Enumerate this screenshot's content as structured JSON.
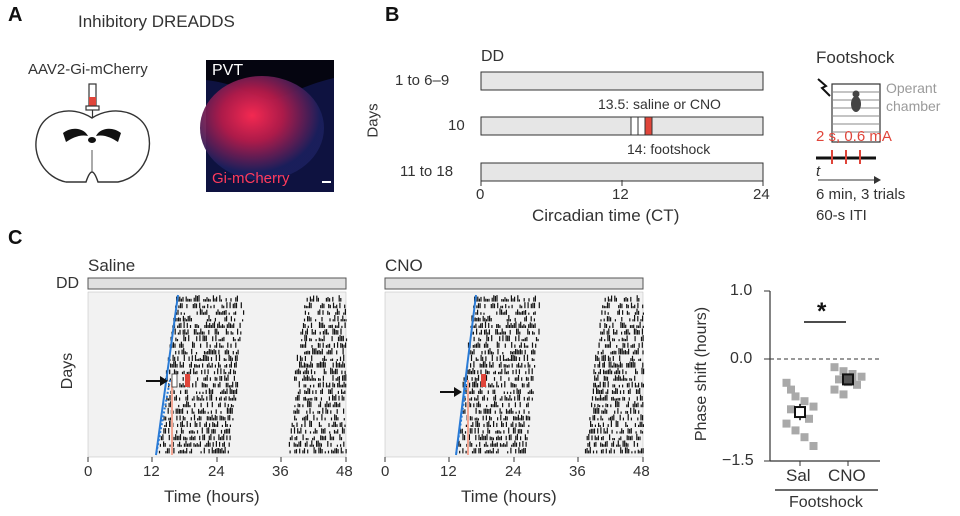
{
  "panel_a": {
    "letter": "A",
    "title": "Inhibitory DREADDS",
    "virus_label": "AAV2-Gi-mCherry",
    "region_label": "PVT",
    "expression_label": "Gi-mCherry"
  },
  "panel_b": {
    "letter": "B",
    "lighting": "DD",
    "ylabel": "Days",
    "rows": [
      "1 to 6–9",
      "10",
      "11 to 18"
    ],
    "annotation_injection": "13.5: saline or CNO",
    "annotation_footshock": "14: footshock",
    "x_ticks": [
      "0",
      "12",
      "24"
    ],
    "xlabel": "Circadian time (CT)",
    "footshock_title": "Footshock",
    "chamber_label_1": "Operant",
    "chamber_label_2": "chamber",
    "shock_params": "2 s, 0.6 mA",
    "time_symbol": "t",
    "protocol_1": "6 min, 3 trials",
    "protocol_2": "60-s ITI",
    "colors": {
      "bar_fill": "#e6e6e6",
      "shock": "#e0453a"
    }
  },
  "panel_c": {
    "letter": "C",
    "lighting": "DD",
    "ylabel": "Days",
    "actograms": [
      {
        "title": "Saline",
        "x_ticks": [
          "0",
          "12",
          "24",
          "36",
          "48"
        ],
        "xlabel": "Time (hours)"
      },
      {
        "title": "CNO",
        "x_ticks": [
          "0",
          "12",
          "24",
          "36",
          "48"
        ],
        "xlabel": "Time (hours)"
      }
    ]
  },
  "chart_data": {
    "type": "scatter",
    "ylabel": "Phase shift (hours)",
    "categories": [
      "Sal",
      "CNO"
    ],
    "group_label": "Footshock",
    "ylim": [
      -1.5,
      1.0
    ],
    "y_ticks": [
      "1.0",
      "0.0",
      "−1.5"
    ],
    "significance": "*",
    "series": [
      {
        "category": "Sal",
        "mean": -0.78,
        "sem": 0.12,
        "values": [
          -0.35,
          -0.55,
          -0.62,
          -0.7,
          -0.74,
          -0.8,
          -0.88,
          -0.95,
          -1.05,
          -1.15,
          -1.28,
          -0.45
        ]
      },
      {
        "category": "CNO",
        "mean": -0.3,
        "sem": 0.05,
        "values": [
          -0.12,
          -0.18,
          -0.22,
          -0.26,
          -0.3,
          -0.34,
          -0.38,
          -0.45,
          -0.52,
          -0.28
        ]
      }
    ],
    "colors": {
      "points": "#a9a9a9",
      "mean_sal": "#ffffff",
      "mean_cno": "#555555"
    }
  }
}
